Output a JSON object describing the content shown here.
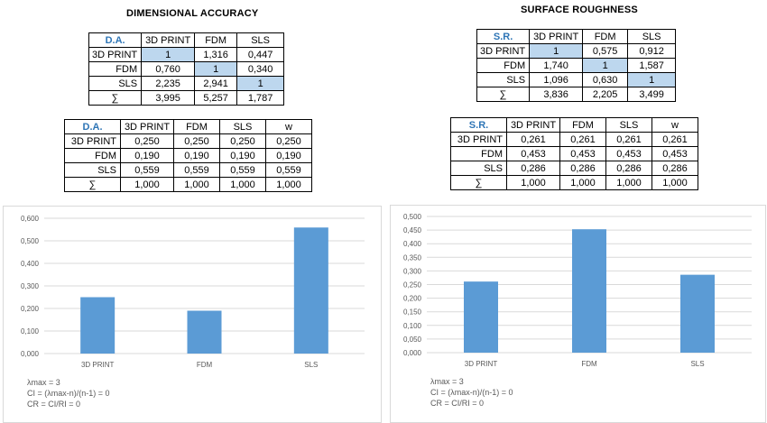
{
  "left": {
    "title": "DIMENSIONAL ACCURACY",
    "pairwise": {
      "headers": [
        "D.A.",
        "3D PRINT",
        "FDM",
        "SLS"
      ],
      "rows": [
        [
          "3D PRINT",
          "1",
          "1,316",
          "0,447"
        ],
        [
          "FDM",
          "0,760",
          "1",
          "0,340"
        ],
        [
          "SLS",
          "2,235",
          "2,941",
          "1"
        ],
        [
          "∑",
          "3,995",
          "5,257",
          "1,787"
        ]
      ]
    },
    "normalized": {
      "headers": [
        "D.A.",
        "3D PRINT",
        "FDM",
        "SLS",
        "w"
      ],
      "rows": [
        [
          "3D PRINT",
          "0,250",
          "0,250",
          "0,250",
          "0,250"
        ],
        [
          "FDM",
          "0,190",
          "0,190",
          "0,190",
          "0,190"
        ],
        [
          "SLS",
          "0,559",
          "0,559",
          "0,559",
          "0,559"
        ],
        [
          "∑",
          "1,000",
          "1,000",
          "1,000",
          "1,000"
        ]
      ]
    },
    "notes": [
      "λmax = 3",
      "CI = (λmax-n)/(n-1) = 0",
      "CR = CI/RI = 0"
    ]
  },
  "right": {
    "title": "SURFACE ROUGHNESS",
    "pairwise": {
      "headers": [
        "S.R.",
        "3D PRINT",
        "FDM",
        "SLS"
      ],
      "rows": [
        [
          "3D PRINT",
          "1",
          "0,575",
          "0,912"
        ],
        [
          "FDM",
          "1,740",
          "1",
          "1,587"
        ],
        [
          "SLS",
          "1,096",
          "0,630",
          "1"
        ],
        [
          "∑",
          "3,836",
          "2,205",
          "3,499"
        ]
      ]
    },
    "normalized": {
      "headers": [
        "S.R.",
        "3D PRINT",
        "FDM",
        "SLS",
        "w"
      ],
      "rows": [
        [
          "3D PRINT",
          "0,261",
          "0,261",
          "0,261",
          "0,261"
        ],
        [
          "FDM",
          "0,453",
          "0,453",
          "0,453",
          "0,453"
        ],
        [
          "SLS",
          "0,286",
          "0,286",
          "0,286",
          "0,286"
        ],
        [
          "∑",
          "1,000",
          "1,000",
          "1,000",
          "1,000"
        ]
      ]
    },
    "notes": [
      "λmax = 3",
      "CI = (λmax-n)/(n-1) = 0",
      "CR = CI/RI = 0"
    ]
  },
  "colors": {
    "bar": "#5b9bd5",
    "header_text": "#2e75b6",
    "highlight": "#bdd7ee",
    "grid": "#d9d9d9"
  },
  "chart_data": [
    {
      "type": "bar",
      "categories": [
        "3D PRINT",
        "FDM",
        "SLS"
      ],
      "values": [
        0.25,
        0.19,
        0.559
      ],
      "ylim": [
        0,
        0.6
      ],
      "yticks": [
        0,
        0.1,
        0.2,
        0.3,
        0.4,
        0.5,
        0.6
      ],
      "ytick_labels": [
        "0,000",
        "0,100",
        "0,200",
        "0,300",
        "0,400",
        "0,500",
        "0,600"
      ],
      "grid": true,
      "title": "",
      "xlabel": "",
      "ylabel": ""
    },
    {
      "type": "bar",
      "categories": [
        "3D PRINT",
        "FDM",
        "SLS"
      ],
      "values": [
        0.261,
        0.453,
        0.286
      ],
      "ylim": [
        0,
        0.5
      ],
      "yticks": [
        0,
        0.05,
        0.1,
        0.15,
        0.2,
        0.25,
        0.3,
        0.35,
        0.4,
        0.45,
        0.5
      ],
      "ytick_labels": [
        "0,000",
        "0,050",
        "0,100",
        "0,150",
        "0,200",
        "0,250",
        "0,300",
        "0,350",
        "0,400",
        "0,450",
        "0,500"
      ],
      "grid": true,
      "title": "",
      "xlabel": "",
      "ylabel": ""
    }
  ]
}
